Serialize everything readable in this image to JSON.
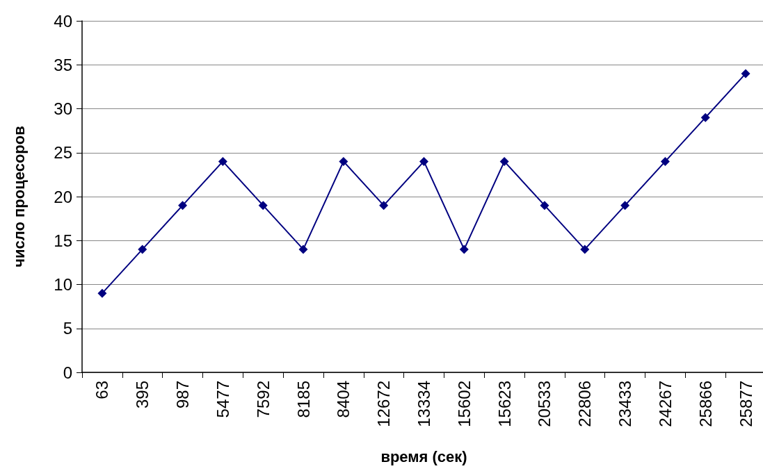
{
  "chart_data": {
    "type": "line",
    "xlabel": "время (сек)",
    "ylabel": "число процесоров",
    "categories": [
      "63",
      "395",
      "987",
      "5477",
      "7592",
      "8185",
      "8404",
      "12672",
      "13334",
      "15602",
      "15623",
      "20533",
      "22806",
      "23433",
      "24267",
      "25866",
      "25877"
    ],
    "series": [
      {
        "color": "#000080",
        "values": [
          9,
          14,
          19,
          24,
          19,
          14,
          24,
          19,
          24,
          14,
          24,
          19,
          14,
          19,
          24,
          29,
          34
        ]
      }
    ],
    "ylim": [
      0,
      40
    ],
    "yticks": [
      0,
      5,
      10,
      15,
      20,
      25,
      30,
      35,
      40
    ],
    "grid": "y",
    "marker": "diamond",
    "line_style": "solid"
  }
}
